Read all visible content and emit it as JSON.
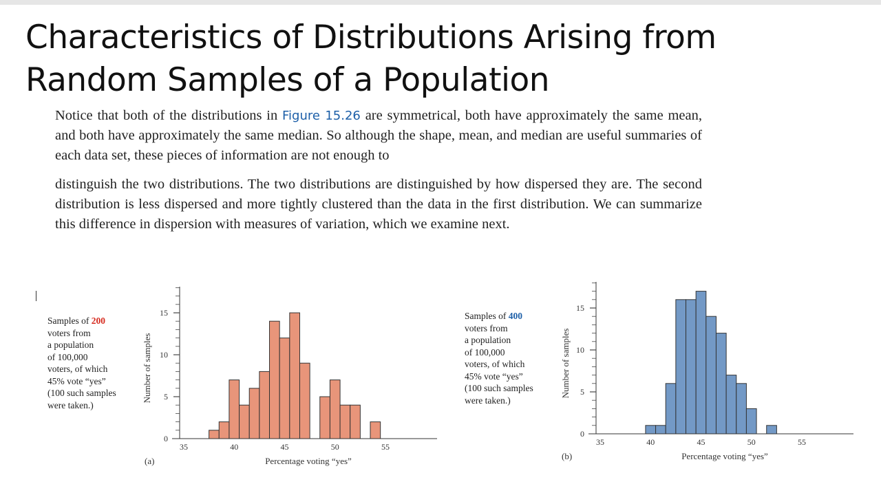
{
  "slide": {
    "title_line1": "Characteristics of Distributions Arising from",
    "title_line2": "Random Samples of a Population"
  },
  "paragraph1": {
    "before": "Notice that both of the distributions in ",
    "figure_ref": "Figure 15.26",
    "after": " are symmetrical, both have approximately the same mean, and both have approximately the same median. So although the shape, mean, and median are useful summaries of each data set, these pieces of information are not enough to"
  },
  "paragraph2": "distinguish the two distributions. The two distributions are distinguished by how dispersed they are. The second distribution is less dispersed and more tightly clustered than the data in the first distribution. We can summarize this difference in dispersion with measures of variation, which we examine next.",
  "colors": {
    "bar_a": "#e8957a",
    "bar_b": "#7399c6",
    "highlight_red": "#d62a1e",
    "highlight_blue": "#1d5fa8"
  },
  "chart_data": [
    {
      "type": "bar",
      "panel_label": "(a)",
      "caption": {
        "l1a": "Samples of ",
        "n": "200",
        "l1b": "",
        "l2": "voters from",
        "l3": "a population",
        "l4": "of 100,000",
        "l5": "voters, of which",
        "l6": "45% vote “yes”",
        "l7": "(100 such samples",
        "l8": "were taken.)"
      },
      "xlabel": "Percentage voting “yes”",
      "ylabel": "Number of samples",
      "xticks": [
        "35",
        "40",
        "45",
        "50",
        "55"
      ],
      "yticks": [
        "0",
        "5",
        "10",
        "15"
      ],
      "xlim": [
        35,
        59
      ],
      "ylim": [
        0,
        18
      ],
      "x": [
        38,
        39,
        40,
        41,
        42,
        43,
        44,
        45,
        46,
        47,
        48,
        49,
        50,
        51,
        52,
        53,
        54
      ],
      "values": [
        1,
        2,
        7,
        4,
        6,
        8,
        14,
        12,
        15,
        9,
        0,
        5,
        7,
        4,
        4,
        0,
        2
      ]
    },
    {
      "type": "bar",
      "panel_label": "(b)",
      "caption": {
        "l1a": "Samples of ",
        "n": "400",
        "l1b": "",
        "l2": "voters from",
        "l3": "a population",
        "l4": "of 100,000",
        "l5": "voters, of which",
        "l6": "45% vote “yes”",
        "l7": "(100 such samples",
        "l8": "were taken.)"
      },
      "xlabel": "Percentage voting “yes”",
      "ylabel": "Number of samples",
      "xticks": [
        "35",
        "40",
        "45",
        "50",
        "55"
      ],
      "yticks": [
        "0",
        "5",
        "10",
        "15"
      ],
      "xlim": [
        35,
        59
      ],
      "ylim": [
        0,
        18
      ],
      "x": [
        40,
        41,
        42,
        43,
        44,
        45,
        46,
        47,
        48,
        49,
        50,
        51,
        52
      ],
      "values": [
        1,
        1,
        6,
        16,
        16,
        17,
        14,
        12,
        7,
        6,
        3,
        0,
        1
      ]
    }
  ]
}
